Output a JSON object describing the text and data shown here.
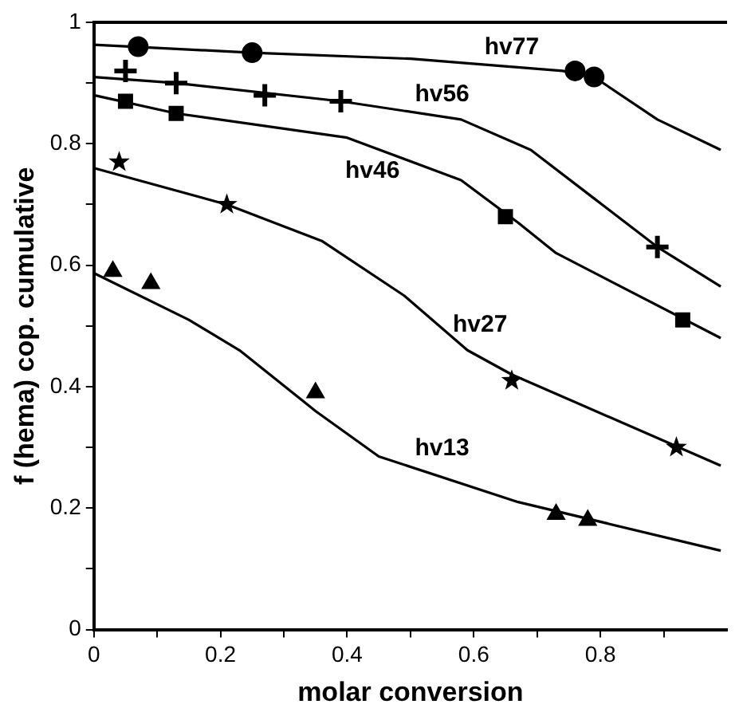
{
  "chart_data": {
    "type": "scatter",
    "xlabel": "molar conversion",
    "ylabel": "f (hema) cop. cumulative",
    "xlim": [
      0,
      1
    ],
    "ylim": [
      0,
      1
    ],
    "xticks": [
      0,
      {
        "value": 0.1,
        "label": null
      },
      0.2,
      {
        "value": 0.3,
        "label": null
      },
      0.4,
      {
        "value": 0.5,
        "label": null
      },
      0.6,
      {
        "value": 0.7,
        "label": null
      },
      0.8,
      {
        "value": 0.9,
        "label": null
      }
    ],
    "yticks": [
      0,
      {
        "value": 0.1,
        "label": null
      },
      0.2,
      {
        "value": 0.3,
        "label": null
      },
      0.4,
      {
        "value": 0.5,
        "label": null
      },
      0.6,
      {
        "value": 0.7,
        "label": null
      },
      0.8,
      {
        "value": 0.9,
        "label": null
      },
      1
    ],
    "grid": false,
    "legend": false,
    "series": [
      {
        "type": "line",
        "name": "hv77",
        "color": "#000000",
        "marker": "none",
        "x": [
          0,
          0.25,
          0.5,
          0.74,
          0.79,
          0.89,
          0.99
        ],
        "values": [
          0.963,
          0.95,
          0.94,
          0.92,
          0.91,
          0.84,
          0.79
        ]
      },
      {
        "color": "#000000",
        "marker": "circle",
        "x": [
          0.07,
          0.25,
          0.76,
          0.79
        ],
        "values": [
          0.96,
          0.95,
          0.92,
          0.91
        ]
      },
      {
        "type": "line",
        "name": "hv56",
        "color": "#000000",
        "marker": "none",
        "x": [
          0,
          0.13,
          0.39,
          0.58,
          0.69,
          0.79,
          0.89,
          0.99
        ],
        "values": [
          0.91,
          0.9,
          0.87,
          0.84,
          0.79,
          0.71,
          0.63,
          0.565
        ]
      },
      {
        "color": "#000000",
        "marker": "cross",
        "x": [
          0.05,
          0.13,
          0.27,
          0.39,
          0.89
        ],
        "values": [
          0.92,
          0.9,
          0.88,
          0.87,
          0.63
        ]
      },
      {
        "type": "line",
        "name": "hv46",
        "color": "#000000",
        "marker": "none",
        "x": [
          0,
          0.13,
          0.4,
          0.58,
          0.67,
          0.73,
          0.99
        ],
        "values": [
          0.88,
          0.85,
          0.81,
          0.74,
          0.67,
          0.62,
          0.48
        ]
      },
      {
        "color": "#000000",
        "marker": "square",
        "x": [
          0.05,
          0.13,
          0.65,
          0.93
        ],
        "values": [
          0.87,
          0.85,
          0.68,
          0.51
        ]
      },
      {
        "type": "line",
        "name": "hv27",
        "color": "#000000",
        "marker": "none",
        "x": [
          0,
          0.21,
          0.36,
          0.49,
          0.59,
          0.66,
          0.99
        ],
        "values": [
          0.76,
          0.7,
          0.64,
          0.55,
          0.46,
          0.42,
          0.27
        ]
      },
      {
        "color": "#000000",
        "marker": "star",
        "x": [
          0.04,
          0.21,
          0.66,
          0.92
        ],
        "values": [
          0.77,
          0.7,
          0.41,
          0.3
        ]
      },
      {
        "type": "line",
        "name": "hv13",
        "color": "#000000",
        "marker": "none",
        "x": [
          0,
          0.15,
          0.23,
          0.35,
          0.45,
          0.67,
          0.99
        ],
        "values": [
          0.587,
          0.51,
          0.46,
          0.36,
          0.285,
          0.21,
          0.13
        ]
      },
      {
        "color": "#000000",
        "marker": "triangle",
        "x": [
          0.03,
          0.09,
          0.35,
          0.73,
          0.78
        ],
        "values": [
          0.59,
          0.57,
          0.39,
          0.19,
          0.18
        ]
      }
    ]
  }
}
